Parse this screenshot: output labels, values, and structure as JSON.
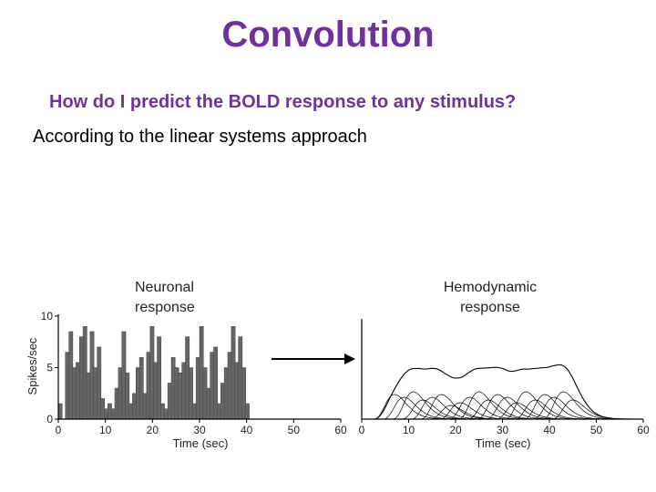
{
  "slide": {
    "title": "Convolution",
    "subtitle": "How do I predict the BOLD response to any stimulus?",
    "body": "According to the linear systems approach"
  },
  "colors": {
    "title": "#7030a0",
    "bar_fill": "#666666",
    "line": "#000000"
  },
  "chart_data": [
    {
      "type": "bar",
      "title": "Neuronal response",
      "xlabel": "Time (sec)",
      "ylabel": "Spikes/sec",
      "xlim": [
        0,
        60
      ],
      "ylim": [
        0,
        10
      ],
      "xticks": [
        "0",
        "10",
        "20",
        "30",
        "40",
        "50",
        "60"
      ],
      "yticks": [
        "0",
        "5",
        "10"
      ],
      "x": [
        0.0,
        0.75,
        1.5,
        2.25,
        3.0,
        3.75,
        4.5,
        5.25,
        6.0,
        6.75,
        7.5,
        8.25,
        9.0,
        9.75,
        10.5,
        11.25,
        12.0,
        12.75,
        13.5,
        14.25,
        15.0,
        15.75,
        16.5,
        17.25,
        18.0,
        18.75,
        19.5,
        20.25,
        21.0,
        21.75,
        22.5,
        23.25,
        24.0,
        24.75,
        25.5,
        26.25,
        27.0,
        27.75,
        28.5,
        29.25,
        30.0,
        30.75,
        31.5,
        32.25,
        33.0,
        33.75,
        34.5,
        35.25,
        36.0,
        36.75,
        37.5,
        38.25,
        39.0,
        39.75
      ],
      "values": [
        1.5,
        0,
        6.5,
        8.5,
        5,
        5.5,
        8,
        9,
        4.5,
        8.5,
        5,
        7,
        2,
        1,
        1.5,
        1,
        3,
        5,
        8.5,
        4.5,
        1.5,
        2.5,
        5,
        6,
        2.5,
        6.5,
        9,
        5.5,
        8,
        1.5,
        1,
        3.5,
        6,
        5,
        4.5,
        5.5,
        8,
        5,
        1.5,
        6,
        9,
        5,
        3,
        6.5,
        7,
        1.5,
        3.5,
        5,
        6.5,
        9,
        5.5,
        8,
        5,
        1.5
      ]
    },
    {
      "type": "line",
      "title": "Hemodynamic response",
      "xlabel": "Time (sec)",
      "xlim": [
        0,
        60
      ],
      "xticks": [
        "0",
        "10",
        "20",
        "30",
        "40",
        "50",
        "60"
      ],
      "onset_interval": 2,
      "onsets": [
        2,
        4,
        6,
        8,
        10,
        12,
        14,
        16,
        18,
        20,
        22,
        24,
        26,
        28,
        30,
        32,
        34,
        36,
        38,
        40
      ],
      "amplitudes": [
        0.9,
        0.8,
        1.0,
        0.7,
        0.8,
        0.9,
        0.5,
        0.6,
        0.8,
        1.0,
        0.7,
        0.9,
        0.8,
        0.6,
        1.0,
        0.7,
        0.9,
        0.8,
        1.0,
        0.7
      ]
    }
  ],
  "arrow": {
    "direction": "right"
  }
}
